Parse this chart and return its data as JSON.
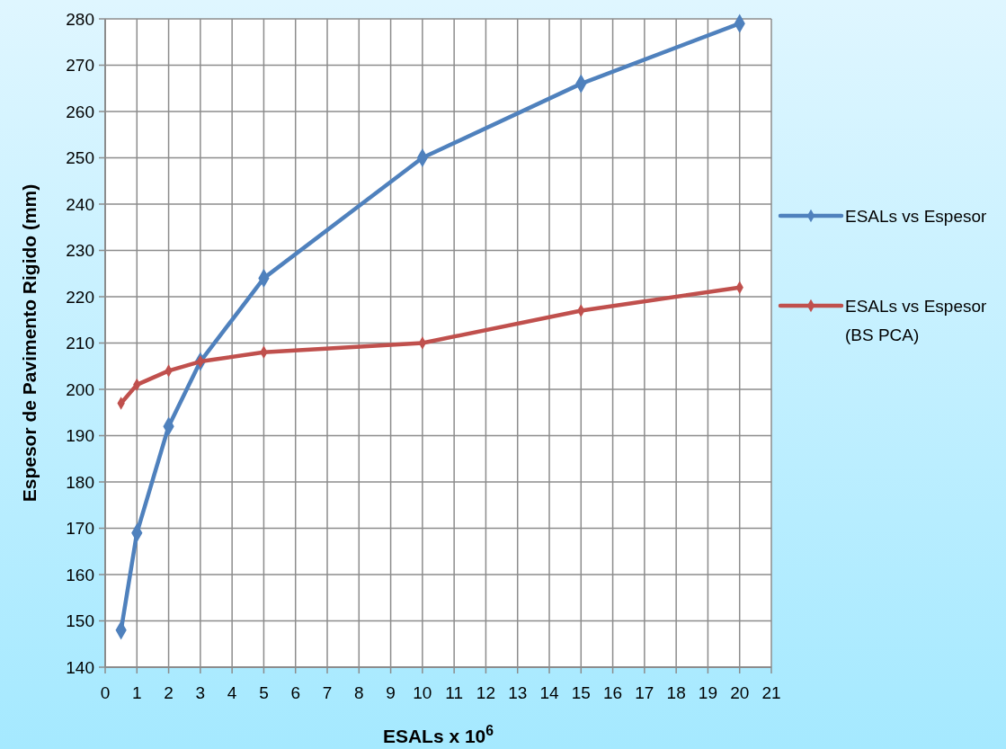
{
  "chart_data": {
    "type": "line",
    "xlabel": "ESALs x 10$^{6}$",
    "ylabel": "Espesor de Pavimento Rigido (mm)",
    "x": [
      0.5,
      1,
      2,
      3,
      5,
      10,
      15,
      20
    ],
    "series": [
      {
        "name": "ESALs vs Espesor",
        "color": "#4f81bd",
        "values": [
          148,
          169,
          192,
          206,
          224,
          250,
          266,
          279
        ]
      },
      {
        "name": "ESALs vs Espesor (BS PCA)",
        "color": "#c0504d",
        "values": [
          197,
          201,
          204,
          206,
          208,
          210,
          217,
          222
        ]
      }
    ],
    "xlim": [
      0,
      21
    ],
    "xticks": [
      0,
      1,
      2,
      3,
      4,
      5,
      6,
      7,
      8,
      9,
      10,
      11,
      12,
      13,
      14,
      15,
      16,
      17,
      18,
      19,
      20,
      21
    ],
    "ylim": [
      140,
      280
    ],
    "yticks": [
      140,
      150,
      160,
      170,
      180,
      190,
      200,
      210,
      220,
      230,
      240,
      250,
      260,
      270,
      280
    ],
    "grid": true,
    "legend": "right",
    "marker": "diamond",
    "line_style": "solid"
  }
}
